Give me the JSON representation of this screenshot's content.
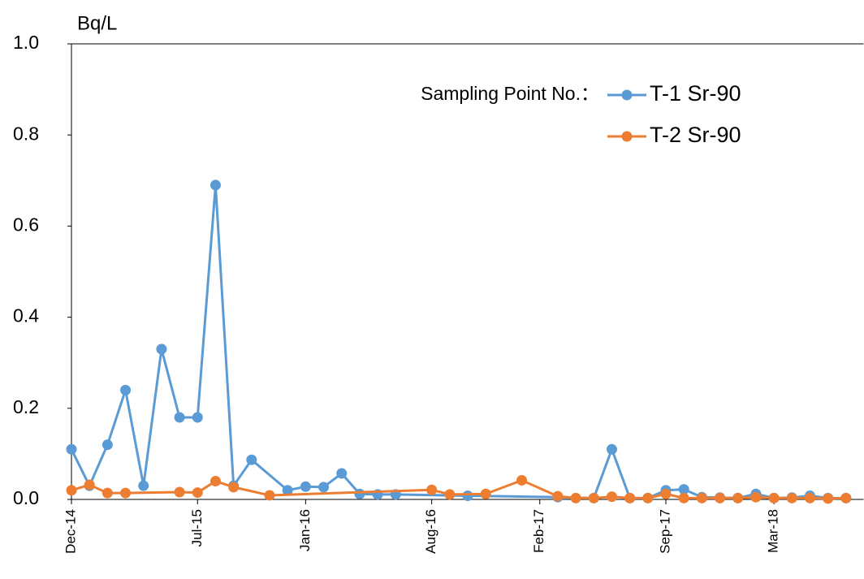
{
  "chart_data": {
    "type": "line",
    "y_axis_label": "Bq/L",
    "legend_title": "Sampling Point No.：",
    "legend_position": "top-right",
    "xlim": [
      "2014-12",
      "2018-08"
    ],
    "xticks": [
      {
        "value": "2014-12",
        "label": "Dec-14"
      },
      {
        "value": "2015-07",
        "label": "Jul-15"
      },
      {
        "value": "2016-01",
        "label": "Jan-16"
      },
      {
        "value": "2016-08",
        "label": "Aug-16"
      },
      {
        "value": "2017-02",
        "label": "Feb-17"
      },
      {
        "value": "2017-09",
        "label": "Sep-17"
      },
      {
        "value": "2018-03",
        "label": "Mar-18"
      }
    ],
    "ylim": [
      0,
      1
    ],
    "yticks": [
      {
        "value": 0,
        "label": "0.0"
      },
      0.2,
      0.4,
      0.6,
      0.8,
      {
        "value": 1,
        "label": "1.0"
      }
    ],
    "series": [
      {
        "name": "T-1 Sr-90",
        "color": "#5b9bd5",
        "x": [
          "2014-12",
          "2015-01",
          "2015-02",
          "2015-03",
          "2015-04",
          "2015-05",
          "2015-06",
          "2015-07",
          "2015-08",
          "2015-09",
          "2015-10",
          "2015-12",
          "2016-01",
          "2016-02",
          "2016-03",
          "2016-04",
          "2016-05",
          "2016-06",
          "2016-10",
          "2017-03",
          "2017-05",
          "2017-06",
          "2017-07",
          "2017-08",
          "2017-09",
          "2017-10",
          "2017-11",
          "2017-12",
          "2018-01",
          "2018-02",
          "2018-03",
          "2018-04",
          "2018-05",
          "2018-06",
          "2018-07"
        ],
        "values": [
          0.11,
          0.03,
          0.12,
          0.24,
          0.03,
          0.33,
          0.18,
          0.18,
          0.69,
          0.03,
          0.087,
          0.02,
          0.028,
          0.027,
          0.057,
          0.012,
          0.011,
          0.011,
          0.008,
          0.005,
          0.003,
          0.11,
          0.003,
          0.003,
          0.02,
          0.022,
          0.005,
          0.004,
          0.003,
          0.012,
          0.003,
          0.004,
          0.008,
          0.003,
          0.003
        ]
      },
      {
        "name": "T-2 Sr-90",
        "color": "#ed7d31",
        "x": [
          "2014-12",
          "2015-01",
          "2015-02",
          "2015-03",
          "2015-06",
          "2015-07",
          "2015-08",
          "2015-09",
          "2015-11",
          "2016-08",
          "2016-09",
          "2016-11",
          "2017-01",
          "2017-03",
          "2017-04",
          "2017-05",
          "2017-06",
          "2017-07",
          "2017-08",
          "2017-09",
          "2017-10",
          "2017-11",
          "2017-12",
          "2018-01",
          "2018-02",
          "2018-03",
          "2018-04",
          "2018-05",
          "2018-06",
          "2018-07"
        ],
        "values": [
          0.02,
          0.032,
          0.014,
          0.014,
          0.016,
          0.015,
          0.04,
          0.027,
          0.009,
          0.021,
          0.011,
          0.012,
          0.042,
          0.007,
          0.003,
          0.003,
          0.006,
          0.003,
          0.003,
          0.012,
          0.003,
          0.003,
          0.003,
          0.003,
          0.005,
          0.003,
          0.003,
          0.003,
          0.002,
          0.003
        ]
      }
    ]
  }
}
